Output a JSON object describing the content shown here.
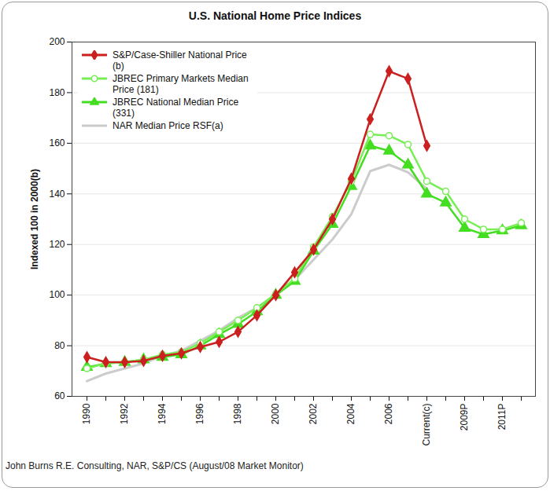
{
  "chart_data": {
    "type": "line",
    "title": "U.S. National Home Price Indices",
    "y_label": "Indexed 100 in 2000(b)",
    "caption": "John Burns R.E. Consulting, NAR, S&P/CS (August/08 Market Monitor)",
    "categories": [
      "1990",
      null,
      "1992",
      null,
      "1994",
      null,
      "1996",
      null,
      "1998",
      null,
      "2000",
      null,
      "2002",
      null,
      "2004",
      null,
      "2006",
      null,
      "Current(c)",
      null,
      "2009P",
      null,
      "2011P",
      null
    ],
    "series": [
      {
        "name": "S&P/Case-Shiller National Price (b)",
        "color": "#cc1f1f",
        "marker": "diamond",
        "values": [
          75.5,
          73.5,
          73.5,
          74,
          76,
          77,
          79.5,
          81.5,
          85.5,
          92,
          100,
          109,
          118,
          130,
          146,
          169.5,
          188.5,
          185.5,
          159,
          null,
          null,
          null,
          null,
          null
        ]
      },
      {
        "name": "JBREC Primary Markets Median Price (181)",
        "color": "#77ee55",
        "marker": "circle",
        "values": [
          71,
          73,
          73.5,
          74.5,
          76.5,
          77.5,
          81,
          85.5,
          90,
          95,
          100.5,
          106.5,
          119,
          131,
          145,
          163.5,
          163,
          159.5,
          145,
          141,
          130,
          126,
          126,
          128.5
        ]
      },
      {
        "name": "JBREC National Median Price (331)",
        "color": "#44dd22",
        "marker": "triangle",
        "values": [
          71.5,
          73,
          73.5,
          74.5,
          75.5,
          76.5,
          80,
          84.5,
          88.5,
          93.5,
          100,
          105.5,
          117.5,
          128,
          143,
          159,
          157,
          151.5,
          140,
          136.5,
          126.5,
          124,
          125.5,
          127.5
        ]
      },
      {
        "name": "NAR Median Price RSF(a)",
        "color": "#cccccc",
        "marker": "none",
        "values": [
          66,
          69,
          71,
          73,
          76,
          78,
          82,
          86,
          91,
          95,
          100,
          106,
          114,
          122,
          132,
          149,
          151.5,
          148.5,
          142,
          null,
          null,
          null,
          null,
          null
        ]
      }
    ],
    "ylim": [
      60,
      200
    ],
    "yticks": [
      60,
      80,
      100,
      120,
      140,
      160,
      180,
      200
    ],
    "grid": true,
    "legend": "top-left"
  }
}
